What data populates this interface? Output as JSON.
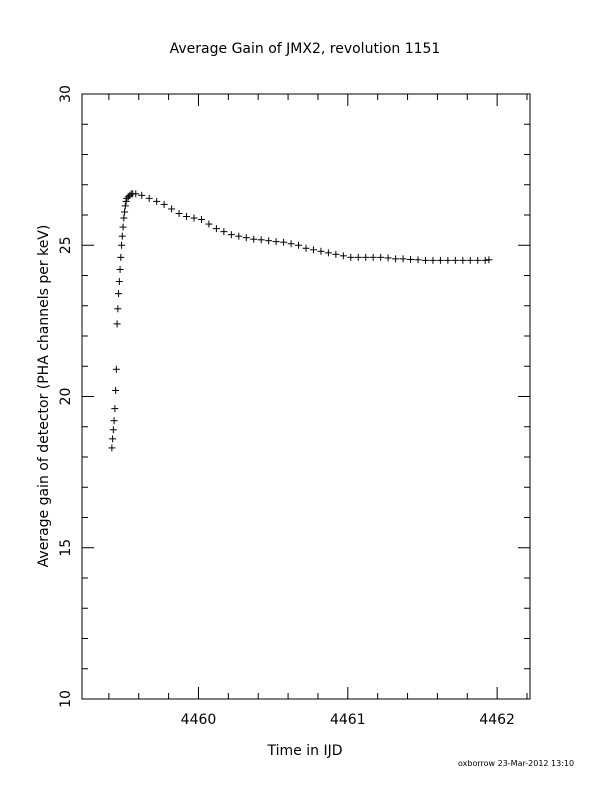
{
  "chart_data": {
    "type": "scatter",
    "title": "Average Gain of JMX2, revolution 1151",
    "xlabel": "Time in IJD",
    "ylabel": "Average gain of detector (PHA channels per keV)",
    "xlim": [
      4459.22,
      4462.22
    ],
    "ylim": [
      10,
      30
    ],
    "xticks": [
      4460,
      4461,
      4462
    ],
    "xtick_labels": [
      "4460",
      "4461",
      "4462"
    ],
    "yticks": [
      10,
      15,
      20,
      25,
      30
    ],
    "ytick_labels": [
      "10",
      "15",
      "20",
      "25",
      "30"
    ],
    "grid": false,
    "marker": "+",
    "series": [
      {
        "x": [
          4459.42,
          4459.425,
          4459.43,
          4459.435,
          4459.44,
          4459.445,
          4459.45,
          4459.455,
          4459.46,
          4459.465,
          4459.47,
          4459.475,
          4459.48,
          4459.485,
          4459.49,
          4459.495,
          4459.5,
          4459.505,
          4459.51,
          4459.515,
          4459.52,
          4459.53,
          4459.54,
          4459.55,
          4459.56,
          4459.58,
          4459.62,
          4459.67,
          4459.72,
          4459.77,
          4459.82,
          4459.87,
          4459.92,
          4459.97,
          4460.02,
          4460.07,
          4460.12,
          4460.17,
          4460.22,
          4460.27,
          4460.32,
          4460.37,
          4460.42,
          4460.47,
          4460.52,
          4460.57,
          4460.62,
          4460.67,
          4460.72,
          4460.77,
          4460.82,
          4460.87,
          4460.92,
          4460.97,
          4461.02,
          4461.07,
          4461.12,
          4461.17,
          4461.22,
          4461.27,
          4461.32,
          4461.37,
          4461.42,
          4461.47,
          4461.52,
          4461.57,
          4461.62,
          4461.67,
          4461.72,
          4461.77,
          4461.82,
          4461.87,
          4461.92,
          4461.945
        ],
        "y": [
          18.3,
          18.6,
          18.9,
          19.2,
          19.6,
          20.2,
          20.9,
          22.4,
          22.9,
          23.4,
          23.8,
          24.2,
          24.6,
          25.0,
          25.3,
          25.6,
          25.9,
          26.1,
          26.3,
          26.45,
          26.55,
          26.6,
          26.65,
          26.7,
          26.7,
          26.7,
          26.65,
          26.55,
          26.45,
          26.35,
          26.2,
          26.05,
          25.95,
          25.9,
          25.85,
          25.7,
          25.55,
          25.45,
          25.35,
          25.3,
          25.25,
          25.2,
          25.18,
          25.15,
          25.12,
          25.1,
          25.05,
          25.0,
          24.9,
          24.85,
          24.8,
          24.75,
          24.7,
          24.65,
          24.6,
          24.6,
          24.6,
          24.6,
          24.6,
          24.58,
          24.55,
          24.55,
          24.53,
          24.52,
          24.5,
          24.5,
          24.5,
          24.5,
          24.5,
          24.5,
          24.5,
          24.5,
          24.5,
          24.52
        ]
      }
    ]
  },
  "footer": "oxborrow 23-Mar-2012 13:10"
}
